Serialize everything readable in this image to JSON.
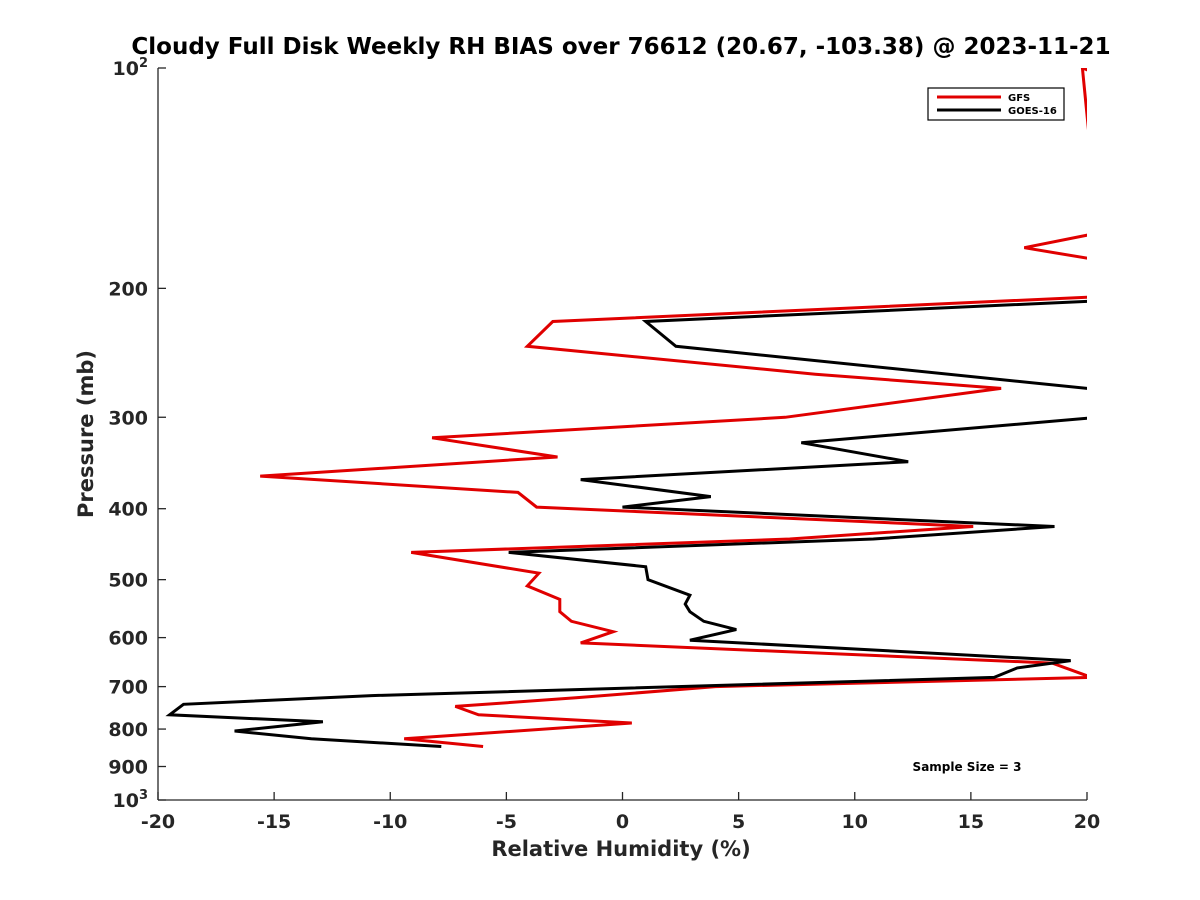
{
  "chart_data": {
    "type": "line",
    "title": "Cloudy Full Disk Weekly RH BIAS over 76612 (20.67, -103.38) @ 2023-11-21",
    "xlabel": "Relative Humidity (%)",
    "ylabel": "Pressure (mb)",
    "xlim": [
      -20,
      20
    ],
    "ylim": [
      100,
      1000
    ],
    "yscale": "log",
    "yreversed": true,
    "xticks": [
      -20,
      -15,
      -10,
      -5,
      0,
      5,
      10,
      15,
      20
    ],
    "xtick_labels": [
      "-20",
      "-15",
      "-10",
      "-5",
      "0",
      "5",
      "10",
      "15",
      "20"
    ],
    "yticks_plain": [
      {
        "value": 200,
        "label": "200"
      },
      {
        "value": 300,
        "label": "300"
      },
      {
        "value": 400,
        "label": "400"
      },
      {
        "value": 500,
        "label": "500"
      },
      {
        "value": 600,
        "label": "600"
      },
      {
        "value": 700,
        "label": "700"
      },
      {
        "value": 800,
        "label": "800"
      },
      {
        "value": 900,
        "label": "900"
      }
    ],
    "yticks_power": [
      {
        "value": 100,
        "base": "10",
        "exp": "2"
      },
      {
        "value": 1000,
        "base": "10",
        "exp": "3"
      }
    ],
    "grid": false,
    "legend_position": "top-right",
    "annotation": "Sample Size = 3",
    "series": [
      {
        "name": "GFS",
        "color": "#e00000",
        "points": [
          {
            "x": 20.5,
            "y": 102
          },
          {
            "x": 19.8,
            "y": 100
          },
          {
            "x": 20.5,
            "y": 168
          },
          {
            "x": 17.3,
            "y": 176
          },
          {
            "x": 20.5,
            "y": 183
          },
          {
            "x": 21.0,
            "y": 205
          },
          {
            "x": -3.0,
            "y": 222
          },
          {
            "x": -4.1,
            "y": 240
          },
          {
            "x": 8.3,
            "y": 262
          },
          {
            "x": 16.3,
            "y": 274
          },
          {
            "x": 7.0,
            "y": 300
          },
          {
            "x": -8.2,
            "y": 320
          },
          {
            "x": -2.8,
            "y": 340
          },
          {
            "x": -15.6,
            "y": 361
          },
          {
            "x": -4.5,
            "y": 380
          },
          {
            "x": -3.7,
            "y": 398
          },
          {
            "x": 15.1,
            "y": 423
          },
          {
            "x": 7.2,
            "y": 440
          },
          {
            "x": -9.1,
            "y": 459
          },
          {
            "x": -3.6,
            "y": 490
          },
          {
            "x": -4.1,
            "y": 510
          },
          {
            "x": -2.7,
            "y": 532
          },
          {
            "x": -2.7,
            "y": 553
          },
          {
            "x": -2.2,
            "y": 570
          },
          {
            "x": -0.4,
            "y": 589
          },
          {
            "x": -1.8,
            "y": 610
          },
          {
            "x": 18.5,
            "y": 650
          },
          {
            "x": 20.2,
            "y": 680
          },
          {
            "x": 4.0,
            "y": 700
          },
          {
            "x": -2.0,
            "y": 725
          },
          {
            "x": -7.2,
            "y": 745
          },
          {
            "x": -6.2,
            "y": 765
          },
          {
            "x": 0.4,
            "y": 785
          },
          {
            "x": -9.4,
            "y": 825
          },
          {
            "x": -6.0,
            "y": 845
          }
        ]
      },
      {
        "name": "GOES-16",
        "color": "#000000",
        "points": [
          {
            "x": 20.5,
            "y": 208
          },
          {
            "x": 1.0,
            "y": 222
          },
          {
            "x": 2.3,
            "y": 240
          },
          {
            "x": 20.5,
            "y": 275
          },
          {
            "x": 20.5,
            "y": 300
          },
          {
            "x": 7.7,
            "y": 325
          },
          {
            "x": 12.3,
            "y": 345
          },
          {
            "x": -1.8,
            "y": 365
          },
          {
            "x": 3.8,
            "y": 385
          },
          {
            "x": 0.0,
            "y": 398
          },
          {
            "x": 18.6,
            "y": 423
          },
          {
            "x": 10.8,
            "y": 440
          },
          {
            "x": -4.9,
            "y": 459
          },
          {
            "x": 1.0,
            "y": 480
          },
          {
            "x": 1.1,
            "y": 500
          },
          {
            "x": 2.9,
            "y": 525
          },
          {
            "x": 2.7,
            "y": 540
          },
          {
            "x": 2.9,
            "y": 553
          },
          {
            "x": 3.5,
            "y": 570
          },
          {
            "x": 4.9,
            "y": 585
          },
          {
            "x": 2.9,
            "y": 605
          },
          {
            "x": 19.3,
            "y": 645
          },
          {
            "x": 17.0,
            "y": 660
          },
          {
            "x": 16.0,
            "y": 680
          },
          {
            "x": -10.8,
            "y": 720
          },
          {
            "x": -18.9,
            "y": 740
          },
          {
            "x": -19.5,
            "y": 765
          },
          {
            "x": -12.9,
            "y": 782
          },
          {
            "x": -16.7,
            "y": 805
          },
          {
            "x": -13.4,
            "y": 825
          },
          {
            "x": -7.8,
            "y": 845
          }
        ]
      }
    ]
  }
}
